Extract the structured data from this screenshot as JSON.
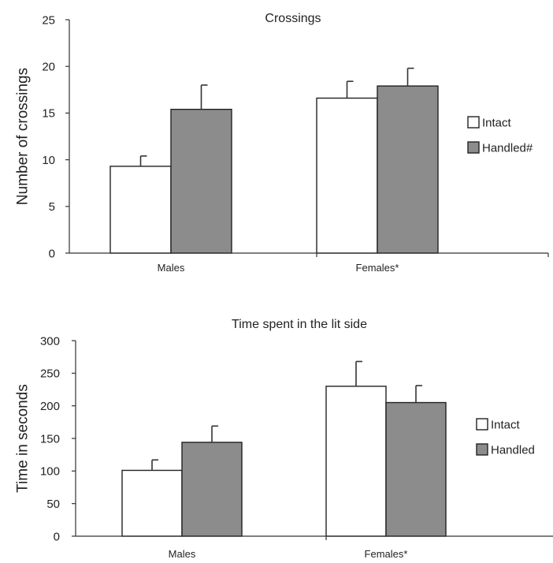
{
  "chart_data": [
    {
      "type": "bar",
      "title": "Crossings",
      "xlabel": "",
      "ylabel": "Number of crossings",
      "ylim": [
        0,
        25
      ],
      "yticks": [
        0,
        5,
        10,
        15,
        20,
        25
      ],
      "categories": [
        "Males",
        "Females*"
      ],
      "series": [
        {
          "name": "Intact",
          "color": "#ffffff",
          "values": [
            9.3,
            16.6
          ],
          "errors": [
            1.1,
            1.8
          ]
        },
        {
          "name": "Handled#",
          "color": "#8c8c8c",
          "values": [
            15.4,
            17.9
          ],
          "errors": [
            2.6,
            1.9
          ]
        }
      ],
      "legend": "right",
      "grid": false
    },
    {
      "type": "bar",
      "title": "Time spent in the lit side",
      "xlabel": "",
      "ylabel": "Time in seconds",
      "ylim": [
        0,
        300
      ],
      "yticks": [
        0,
        50,
        100,
        150,
        200,
        250,
        300
      ],
      "categories": [
        "Males",
        "Females*"
      ],
      "series": [
        {
          "name": "Intact",
          "color": "#ffffff",
          "values": [
            101,
            230
          ],
          "errors": [
            16,
            38
          ]
        },
        {
          "name": "Handled",
          "color": "#8c8c8c",
          "values": [
            144,
            205
          ],
          "errors": [
            25,
            26
          ]
        }
      ],
      "legend": "right",
      "grid": false
    }
  ]
}
